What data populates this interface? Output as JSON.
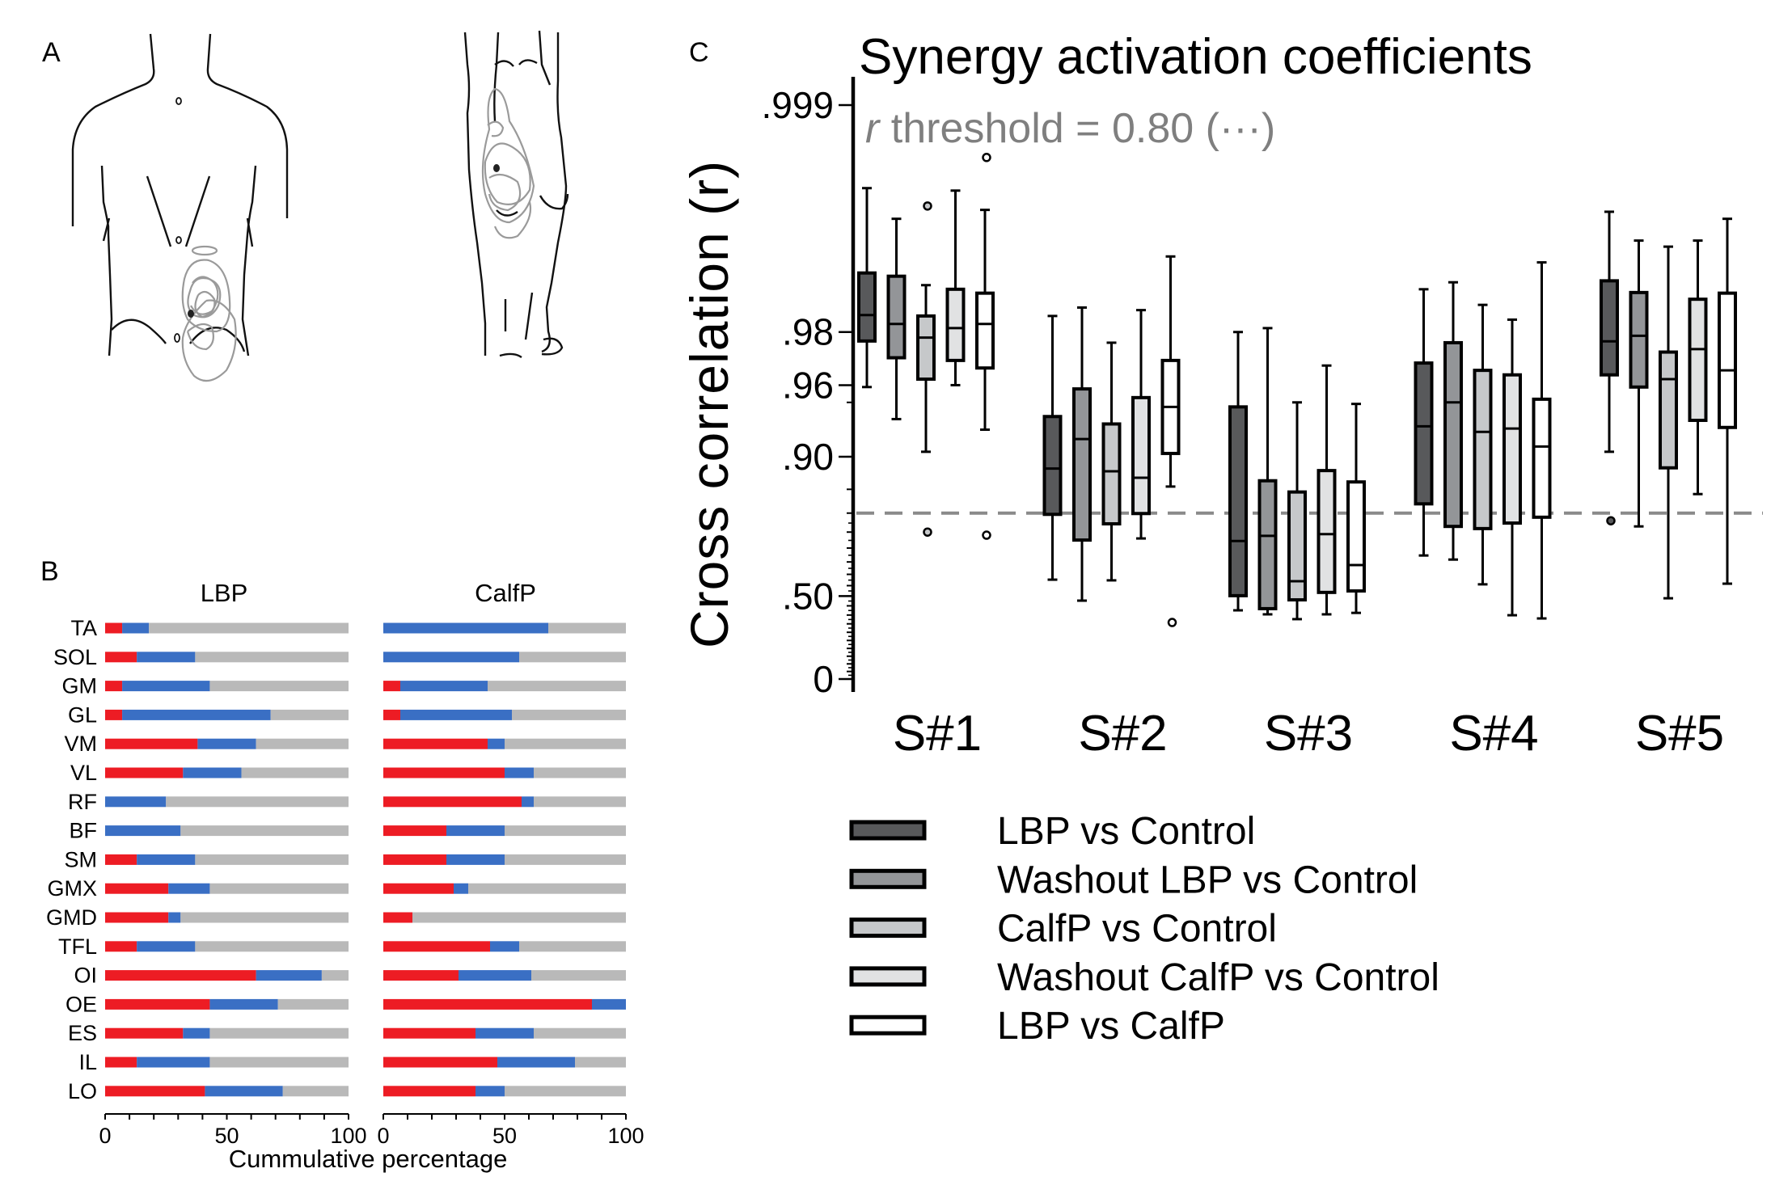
{
  "panels": {
    "a": {
      "letter": "A"
    },
    "b": {
      "letter": "B"
    },
    "c": {
      "letter": "C"
    }
  },
  "chart_data": [
    {
      "type": "bar",
      "subtype": "stacked-horizontal",
      "panel": "B",
      "xlabel": "Cummulative percentage",
      "xlim": [
        0,
        100
      ],
      "xticks": [
        "0",
        "50",
        "100"
      ],
      "segment_colors": [
        "#ed1c24",
        "#3a6fc4",
        "#b9b9b9"
      ],
      "categories": [
        "TA",
        "SOL",
        "GM",
        "GL",
        "VM",
        "VL",
        "RF",
        "BF",
        "SM",
        "GMX",
        "GMD",
        "TFL",
        "OI",
        "OE",
        "ES",
        "IL",
        "LO"
      ],
      "groups": [
        {
          "name": "LBP",
          "series": [
            {
              "name": "red",
              "values": [
                7,
                13,
                7,
                7,
                38,
                32,
                0,
                0,
                13,
                26,
                26,
                13,
                62,
                43,
                32,
                13,
                41
              ]
            },
            {
              "name": "blue",
              "values": [
                11,
                24,
                36,
                61,
                24,
                24,
                25,
                31,
                24,
                17,
                5,
                24,
                27,
                28,
                11,
                30,
                32
              ]
            },
            {
              "name": "grey",
              "values": [
                82,
                63,
                57,
                32,
                38,
                44,
                75,
                69,
                63,
                57,
                69,
                63,
                11,
                29,
                57,
                57,
                27
              ]
            }
          ]
        },
        {
          "name": "CalfP",
          "series": [
            {
              "name": "red",
              "values": [
                0,
                0,
                7,
                7,
                43,
                50,
                57,
                26,
                26,
                29,
                12,
                44,
                31,
                86,
                38,
                47,
                38
              ]
            },
            {
              "name": "blue",
              "values": [
                68,
                56,
                36,
                46,
                7,
                12,
                5,
                24,
                24,
                6,
                0,
                12,
                30,
                14,
                24,
                32,
                12
              ]
            },
            {
              "name": "grey",
              "values": [
                32,
                44,
                57,
                47,
                50,
                38,
                38,
                50,
                50,
                65,
                88,
                44,
                39,
                0,
                38,
                21,
                50
              ]
            }
          ]
        }
      ]
    },
    {
      "type": "box",
      "panel": "C",
      "title": "Synergy activation coefficients",
      "annotation": {
        "prefix": "r",
        "text": " threshold = 0.80 (···)",
        "threshold": 0.8
      },
      "ylabel": "Cross correlation (r)",
      "yscale": "fisher-z",
      "ylim": [
        0,
        0.999
      ],
      "yticks": [
        {
          "value": 0.999,
          "label": ".999"
        },
        {
          "value": 0.98,
          "label": ".98"
        },
        {
          "value": 0.96,
          "label": ".96"
        },
        {
          "value": 0.9,
          "label": ".90"
        },
        {
          "value": 0.5,
          "label": ".50"
        },
        {
          "value": 0,
          "label": "0"
        }
      ],
      "categories": [
        "S#1",
        "S#2",
        "S#3",
        "S#4",
        "S#5"
      ],
      "series": [
        {
          "name": "LBP vs Control",
          "color": "#58595b",
          "boxes": [
            {
              "whislo": 0.959,
              "q1": 0.9775,
              "med": 0.984,
              "q3": 0.9908,
              "whishi": 0.997,
              "fliers": []
            },
            {
              "whislo": 0.577,
              "q1": 0.797,
              "med": 0.884,
              "q3": 0.94,
              "whishi": 0.9838,
              "fliers": []
            },
            {
              "whislo": 0.426,
              "q1": 0.502,
              "med": 0.723,
              "q3": 0.947,
              "whishi": 0.98,
              "fliers": []
            },
            {
              "whislo": 0.674,
              "q1": 0.821,
              "med": 0.932,
              "q3": 0.97,
              "whishi": 0.9886,
              "fliers": []
            },
            {
              "whislo": 0.906,
              "q1": 0.965,
              "med": 0.9774,
              "q3": 0.9898,
              "whishi": 0.9959,
              "fliers": [
                0.781
              ]
            }
          ]
        },
        {
          "name": "Washout LBP vs Control",
          "color": "#939598",
          "boxes": [
            {
              "whislo": 0.938,
              "q1": 0.972,
              "med": 0.982,
              "q3": 0.9904,
              "whishi": 0.9955,
              "fliers": []
            },
            {
              "whislo": 0.477,
              "q1": 0.726,
              "med": 0.92,
              "q3": 0.958,
              "whishi": 0.9855,
              "fliers": []
            },
            {
              "whislo": 0.404,
              "q1": 0.435,
              "med": 0.739,
              "q3": 0.865,
              "whishi": 0.981,
              "fliers": []
            },
            {
              "whislo": 0.659,
              "q1": 0.766,
              "med": 0.95,
              "q3": 0.977,
              "whishi": 0.9896,
              "fliers": []
            },
            {
              "whislo": 0.766,
              "q1": 0.959,
              "med": 0.979,
              "q3": 0.9881,
              "whishi": 0.994,
              "fliers": []
            }
          ]
        },
        {
          "name": "CalfP vs Control",
          "color": "#c6c8ca",
          "boxes": [
            {
              "whislo": 0.906,
              "q1": 0.963,
              "med": 0.9785,
              "q3": 0.9838,
              "whishi": 0.9892,
              "fliers": [
                0.9962,
                0.75
              ]
            },
            {
              "whislo": 0.574,
              "q1": 0.773,
              "med": 0.88,
              "q3": 0.934,
              "whishi": 0.977,
              "fliers": []
            },
            {
              "whislo": 0.377,
              "q1": 0.481,
              "med": 0.57,
              "q3": 0.845,
              "whishi": 0.95,
              "fliers": []
            },
            {
              "whislo": 0.556,
              "q1": 0.76,
              "med": 0.927,
              "q3": 0.967,
              "whishi": 0.986,
              "fliers": []
            },
            {
              "whislo": 0.489,
              "q1": 0.885,
              "med": 0.963,
              "q3": 0.974,
              "whishi": 0.9935,
              "fliers": []
            }
          ]
        },
        {
          "name": "Washout CalfP vs Control",
          "color": "#e1e2e3",
          "boxes": [
            {
              "whislo": 0.96,
              "q1": 0.971,
              "med": 0.981,
              "q3": 0.9886,
              "whishi": 0.9969,
              "fliers": []
            },
            {
              "whislo": 0.731,
              "q1": 0.799,
              "med": 0.87,
              "q3": 0.953,
              "whishi": 0.985,
              "fliers": []
            },
            {
              "whislo": 0.404,
              "q1": 0.518,
              "med": 0.744,
              "q3": 0.881,
              "whishi": 0.969,
              "fliers": []
            },
            {
              "whislo": 0.399,
              "q1": 0.775,
              "med": 0.93,
              "q3": 0.965,
              "whishi": 0.983,
              "fliers": []
            },
            {
              "whislo": 0.841,
              "q1": 0.937,
              "med": 0.975,
              "q3": 0.987,
              "whishi": 0.994,
              "fliers": []
            }
          ]
        },
        {
          "name": "LBP vs CalfP",
          "color": "#ffffff",
          "boxes": [
            {
              "whislo": 0.929,
              "q1": 0.968,
              "med": 0.982,
              "q3": 0.988,
              "whishi": 0.996,
              "fliers": [
                0.998,
                0.741
              ]
            },
            {
              "whislo": 0.855,
              "q1": 0.904,
              "med": 0.947,
              "q3": 0.971,
              "whishi": 0.9926,
              "fliers": [
                0.358
              ]
            },
            {
              "whislo": 0.412,
              "q1": 0.525,
              "med": 0.638,
              "q3": 0.863,
              "whishi": 0.949,
              "fliers": []
            },
            {
              "whislo": 0.381,
              "q1": 0.79,
              "med": 0.912,
              "q3": 0.952,
              "whishi": 0.992,
              "fliers": []
            },
            {
              "whislo": 0.559,
              "q1": 0.931,
              "med": 0.967,
              "q3": 0.988,
              "whishi": 0.9955,
              "fliers": []
            }
          ]
        }
      ],
      "legend": {
        "placement": "bottom",
        "entries": [
          "LBP vs Control",
          "Washout LBP vs Control",
          "CalfP vs Control",
          "Washout CalfP vs Control",
          "LBP vs CalfP"
        ]
      }
    }
  ]
}
